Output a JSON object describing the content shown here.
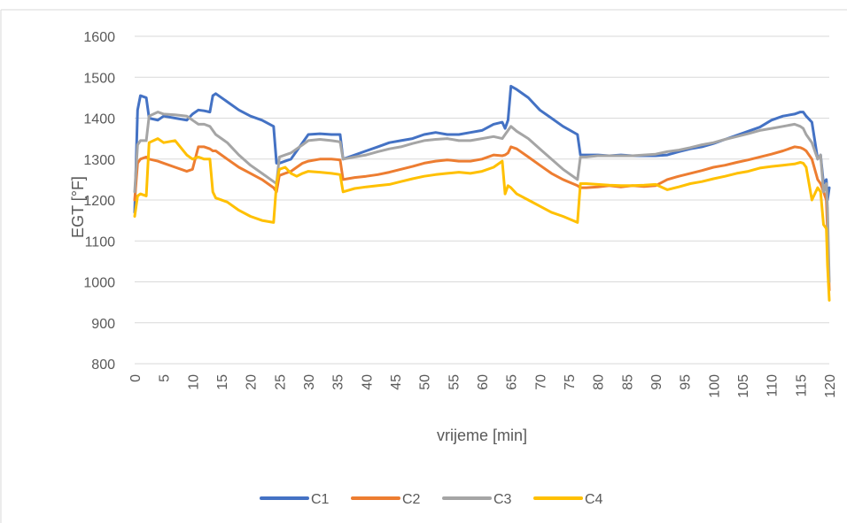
{
  "chart_data": {
    "type": "line",
    "title": "",
    "xlabel": "vrijeme [min]",
    "ylabel": "EGT [°F]",
    "xlim": [
      0,
      120
    ],
    "ylim": [
      800,
      1600
    ],
    "x_ticks": [
      0,
      5,
      10,
      15,
      20,
      25,
      30,
      35,
      40,
      45,
      50,
      55,
      60,
      65,
      70,
      75,
      80,
      85,
      90,
      95,
      100,
      105,
      110,
      115,
      120
    ],
    "y_ticks": [
      800,
      900,
      1000,
      1100,
      1200,
      1300,
      1400,
      1500,
      1600
    ],
    "grid": "horizontal",
    "legend_position": "bottom",
    "x": [
      0,
      0.5,
      1,
      2,
      2.5,
      4,
      5,
      7,
      9,
      10,
      11,
      12,
      13,
      13.5,
      14,
      16,
      18,
      20,
      22,
      24,
      24.5,
      25,
      26,
      27,
      28,
      29,
      30,
      32,
      34,
      35.5,
      36,
      38,
      40,
      42,
      44,
      46,
      48,
      50,
      52,
      54,
      56,
      58,
      60,
      62,
      63.5,
      64,
      64.5,
      65,
      66,
      68,
      70,
      72,
      74,
      76.5,
      77,
      78,
      80,
      82,
      84,
      86,
      88,
      90,
      92,
      94,
      96,
      98,
      100,
      102,
      104,
      106,
      108,
      110,
      112,
      114,
      115,
      115.5,
      116,
      117,
      118,
      118.5,
      119,
      119.5,
      119.7,
      120
    ],
    "series": [
      {
        "name": "C1",
        "color": "#4472C4",
        "values": [
          1170,
          1420,
          1455,
          1450,
          1400,
          1395,
          1405,
          1400,
          1395,
          1410,
          1420,
          1418,
          1415,
          1455,
          1460,
          1440,
          1420,
          1405,
          1395,
          1380,
          1290,
          1290,
          1295,
          1300,
          1320,
          1340,
          1360,
          1362,
          1360,
          1360,
          1300,
          1310,
          1320,
          1330,
          1340,
          1345,
          1350,
          1360,
          1365,
          1360,
          1360,
          1365,
          1370,
          1385,
          1390,
          1375,
          1395,
          1478,
          1470,
          1450,
          1420,
          1400,
          1380,
          1360,
          1310,
          1310,
          1310,
          1308,
          1310,
          1308,
          1308,
          1308,
          1310,
          1318,
          1325,
          1330,
          1338,
          1348,
          1358,
          1368,
          1378,
          1395,
          1405,
          1410,
          1415,
          1415,
          1405,
          1390,
          1300,
          1310,
          1240,
          1250,
          1200,
          1230
        ]
      },
      {
        "name": "C2",
        "color": "#ED7D31",
        "values": [
          1200,
          1290,
          1300,
          1305,
          1300,
          1295,
          1290,
          1280,
          1270,
          1275,
          1330,
          1330,
          1325,
          1320,
          1320,
          1300,
          1280,
          1265,
          1250,
          1230,
          1220,
          1260,
          1265,
          1270,
          1280,
          1290,
          1295,
          1300,
          1300,
          1298,
          1250,
          1255,
          1258,
          1262,
          1268,
          1275,
          1282,
          1290,
          1295,
          1298,
          1295,
          1295,
          1300,
          1310,
          1308,
          1310,
          1315,
          1330,
          1325,
          1305,
          1285,
          1265,
          1250,
          1235,
          1230,
          1230,
          1232,
          1235,
          1232,
          1235,
          1233,
          1235,
          1250,
          1258,
          1265,
          1272,
          1280,
          1285,
          1292,
          1298,
          1305,
          1312,
          1320,
          1330,
          1328,
          1325,
          1320,
          1300,
          1250,
          1240,
          1220,
          1200,
          1120,
          980
        ]
      },
      {
        "name": "C3",
        "color": "#A5A5A5",
        "values": [
          1220,
          1335,
          1345,
          1345,
          1405,
          1415,
          1410,
          1408,
          1405,
          1395,
          1385,
          1385,
          1380,
          1370,
          1360,
          1340,
          1310,
          1285,
          1265,
          1245,
          1240,
          1305,
          1310,
          1315,
          1325,
          1335,
          1345,
          1348,
          1345,
          1342,
          1300,
          1305,
          1310,
          1318,
          1325,
          1330,
          1338,
          1345,
          1348,
          1350,
          1345,
          1345,
          1350,
          1355,
          1350,
          1360,
          1370,
          1380,
          1368,
          1350,
          1325,
          1300,
          1275,
          1250,
          1305,
          1305,
          1308,
          1308,
          1308,
          1308,
          1310,
          1312,
          1318,
          1322,
          1328,
          1335,
          1340,
          1348,
          1355,
          1362,
          1370,
          1375,
          1380,
          1385,
          1380,
          1375,
          1360,
          1340,
          1300,
          1310,
          1220,
          1240,
          1180,
          1000
        ]
      },
      {
        "name": "C4",
        "color": "#FFC000",
        "values": [
          1160,
          1210,
          1215,
          1210,
          1340,
          1350,
          1340,
          1345,
          1310,
          1300,
          1305,
          1300,
          1300,
          1220,
          1205,
          1195,
          1175,
          1160,
          1150,
          1145,
          1240,
          1275,
          1280,
          1265,
          1258,
          1265,
          1270,
          1268,
          1265,
          1262,
          1220,
          1228,
          1232,
          1235,
          1238,
          1245,
          1252,
          1258,
          1262,
          1265,
          1268,
          1265,
          1270,
          1280,
          1295,
          1215,
          1235,
          1230,
          1215,
          1200,
          1185,
          1170,
          1160,
          1145,
          1240,
          1240,
          1238,
          1236,
          1235,
          1235,
          1236,
          1238,
          1225,
          1232,
          1240,
          1245,
          1252,
          1258,
          1265,
          1270,
          1278,
          1282,
          1285,
          1288,
          1292,
          1290,
          1280,
          1200,
          1230,
          1220,
          1140,
          1130,
          1040,
          955
        ]
      }
    ]
  }
}
